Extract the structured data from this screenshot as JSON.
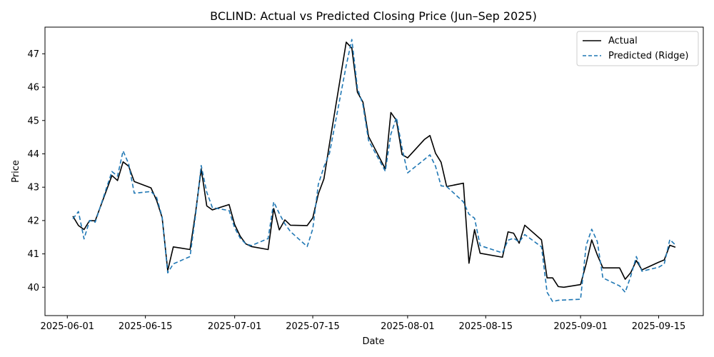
{
  "chart_data": {
    "type": "line",
    "title": "BCLIND: Actual vs Predicted Closing Price (Jun–Sep 2025)",
    "xlabel": "Date",
    "ylabel": "Price",
    "xlim": [
      "2025-05-28",
      "2025-09-23"
    ],
    "ylim": [
      39.15,
      47.8
    ],
    "x_ticks": [
      "2025-06-01",
      "2025-06-15",
      "2025-07-01",
      "2025-07-15",
      "2025-08-01",
      "2025-08-15",
      "2025-09-01",
      "2025-09-15"
    ],
    "y_ticks": [
      40,
      41,
      42,
      43,
      44,
      45,
      46,
      47
    ],
    "grid": false,
    "legend_position": "top-right",
    "series": [
      {
        "name": "Actual",
        "color": "#000000",
        "style": "solid",
        "points": [
          [
            "2025-06-02",
            42.13
          ],
          [
            "2025-06-03",
            41.85
          ],
          [
            "2025-06-04",
            41.73
          ],
          [
            "2025-06-05",
            42.0
          ],
          [
            "2025-06-06",
            41.99
          ],
          [
            "2025-06-09",
            43.35
          ],
          [
            "2025-06-10",
            43.2
          ],
          [
            "2025-06-11",
            43.76
          ],
          [
            "2025-06-12",
            43.63
          ],
          [
            "2025-06-13",
            43.17
          ],
          [
            "2025-06-16",
            42.98
          ],
          [
            "2025-06-17",
            42.61
          ],
          [
            "2025-06-18",
            42.09
          ],
          [
            "2025-06-19",
            40.5
          ],
          [
            "2025-06-20",
            41.21
          ],
          [
            "2025-06-23",
            41.13
          ],
          [
            "2025-06-24",
            42.25
          ],
          [
            "2025-06-25",
            43.55
          ],
          [
            "2025-06-26",
            42.44
          ],
          [
            "2025-06-27",
            42.32
          ],
          [
            "2025-06-30",
            42.48
          ],
          [
            "2025-07-01",
            41.88
          ],
          [
            "2025-07-02",
            41.53
          ],
          [
            "2025-07-03",
            41.3
          ],
          [
            "2025-07-04",
            41.22
          ],
          [
            "2025-07-07",
            41.13
          ],
          [
            "2025-07-08",
            42.36
          ],
          [
            "2025-07-09",
            41.72
          ],
          [
            "2025-07-10",
            42.02
          ],
          [
            "2025-07-11",
            41.86
          ],
          [
            "2025-07-14",
            41.85
          ],
          [
            "2025-07-15",
            42.08
          ],
          [
            "2025-07-16",
            42.8
          ],
          [
            "2025-07-17",
            43.25
          ],
          [
            "2025-07-18",
            44.3
          ],
          [
            "2025-07-21",
            47.35
          ],
          [
            "2025-07-22",
            47.17
          ],
          [
            "2025-07-23",
            45.85
          ],
          [
            "2025-07-24",
            45.55
          ],
          [
            "2025-07-25",
            44.52
          ],
          [
            "2025-07-28",
            43.55
          ],
          [
            "2025-07-29",
            45.24
          ],
          [
            "2025-07-30",
            45.0
          ],
          [
            "2025-07-31",
            43.98
          ],
          [
            "2025-08-01",
            43.88
          ],
          [
            "2025-08-04",
            44.43
          ],
          [
            "2025-08-05",
            44.55
          ],
          [
            "2025-08-06",
            44.02
          ],
          [
            "2025-08-07",
            43.75
          ],
          [
            "2025-08-08",
            43.02
          ],
          [
            "2025-08-11",
            43.12
          ],
          [
            "2025-08-12",
            40.72
          ],
          [
            "2025-08-13",
            41.73
          ],
          [
            "2025-08-14",
            41.02
          ],
          [
            "2025-08-18",
            40.9
          ],
          [
            "2025-08-19",
            41.66
          ],
          [
            "2025-08-20",
            41.62
          ],
          [
            "2025-08-21",
            41.32
          ],
          [
            "2025-08-22",
            41.86
          ],
          [
            "2025-08-25",
            41.42
          ],
          [
            "2025-08-26",
            40.28
          ],
          [
            "2025-08-27",
            40.28
          ],
          [
            "2025-08-28",
            40.02
          ],
          [
            "2025-08-29",
            40.0
          ],
          [
            "2025-09-01",
            40.08
          ],
          [
            "2025-09-02",
            40.7
          ],
          [
            "2025-09-03",
            41.42
          ],
          [
            "2025-09-04",
            40.97
          ],
          [
            "2025-09-05",
            40.58
          ],
          [
            "2025-09-08",
            40.58
          ],
          [
            "2025-09-09",
            40.24
          ],
          [
            "2025-09-10",
            40.44
          ],
          [
            "2025-09-11",
            40.8
          ],
          [
            "2025-09-12",
            40.52
          ],
          [
            "2025-09-15",
            40.75
          ],
          [
            "2025-09-16",
            40.82
          ],
          [
            "2025-09-17",
            41.26
          ],
          [
            "2025-09-18",
            41.2
          ]
        ]
      },
      {
        "name": "Predicted (Ridge)",
        "color": "#1f77b4",
        "style": "dashed",
        "points": [
          [
            "2025-06-02",
            42.05
          ],
          [
            "2025-06-03",
            42.27
          ],
          [
            "2025-06-04",
            41.45
          ],
          [
            "2025-06-05",
            42.0
          ],
          [
            "2025-06-06",
            41.95
          ],
          [
            "2025-06-09",
            43.47
          ],
          [
            "2025-06-10",
            43.33
          ],
          [
            "2025-06-11",
            44.09
          ],
          [
            "2025-06-12",
            43.7
          ],
          [
            "2025-06-13",
            42.82
          ],
          [
            "2025-06-16",
            42.87
          ],
          [
            "2025-06-17",
            42.7
          ],
          [
            "2025-06-18",
            42.11
          ],
          [
            "2025-06-19",
            40.43
          ],
          [
            "2025-06-20",
            40.7
          ],
          [
            "2025-06-23",
            40.92
          ],
          [
            "2025-06-24",
            42.17
          ],
          [
            "2025-06-25",
            43.65
          ],
          [
            "2025-06-26",
            42.85
          ],
          [
            "2025-06-27",
            42.39
          ],
          [
            "2025-06-30",
            42.3
          ],
          [
            "2025-07-01",
            41.78
          ],
          [
            "2025-07-02",
            41.47
          ],
          [
            "2025-07-03",
            41.3
          ],
          [
            "2025-07-04",
            41.25
          ],
          [
            "2025-07-07",
            41.46
          ],
          [
            "2025-07-08",
            42.56
          ],
          [
            "2025-07-09",
            42.21
          ],
          [
            "2025-07-10",
            41.9
          ],
          [
            "2025-07-11",
            41.67
          ],
          [
            "2025-07-14",
            41.22
          ],
          [
            "2025-07-15",
            41.75
          ],
          [
            "2025-07-16",
            43.09
          ],
          [
            "2025-07-17",
            43.61
          ],
          [
            "2025-07-18",
            44.02
          ],
          [
            "2025-07-21",
            46.65
          ],
          [
            "2025-07-22",
            47.43
          ],
          [
            "2025-07-23",
            45.98
          ],
          [
            "2025-07-24",
            45.46
          ],
          [
            "2025-07-25",
            44.4
          ],
          [
            "2025-07-28",
            43.48
          ],
          [
            "2025-07-29",
            44.59
          ],
          [
            "2025-07-30",
            45.09
          ],
          [
            "2025-07-31",
            44.18
          ],
          [
            "2025-08-01",
            43.43
          ],
          [
            "2025-08-04",
            43.83
          ],
          [
            "2025-08-05",
            43.97
          ],
          [
            "2025-08-06",
            43.63
          ],
          [
            "2025-08-07",
            43.04
          ],
          [
            "2025-08-08",
            43.02
          ],
          [
            "2025-08-11",
            42.56
          ],
          [
            "2025-08-12",
            42.19
          ],
          [
            "2025-08-13",
            42.07
          ],
          [
            "2025-08-14",
            41.25
          ],
          [
            "2025-08-18",
            41.03
          ],
          [
            "2025-08-19",
            41.41
          ],
          [
            "2025-08-20",
            41.47
          ],
          [
            "2025-08-21",
            41.36
          ],
          [
            "2025-08-22",
            41.58
          ],
          [
            "2025-08-25",
            41.21
          ],
          [
            "2025-08-26",
            39.85
          ],
          [
            "2025-08-27",
            39.57
          ],
          [
            "2025-08-28",
            39.61
          ],
          [
            "2025-09-01",
            39.64
          ],
          [
            "2025-09-02",
            41.25
          ],
          [
            "2025-09-03",
            41.74
          ],
          [
            "2025-09-04",
            41.37
          ],
          [
            "2025-09-05",
            40.28
          ],
          [
            "2025-09-08",
            40.04
          ],
          [
            "2025-09-09",
            39.85
          ],
          [
            "2025-09-10",
            40.33
          ],
          [
            "2025-09-11",
            40.92
          ],
          [
            "2025-09-12",
            40.48
          ],
          [
            "2025-09-15",
            40.6
          ],
          [
            "2025-09-16",
            40.7
          ],
          [
            "2025-09-17",
            41.43
          ],
          [
            "2025-09-18",
            41.27
          ]
        ]
      }
    ]
  }
}
